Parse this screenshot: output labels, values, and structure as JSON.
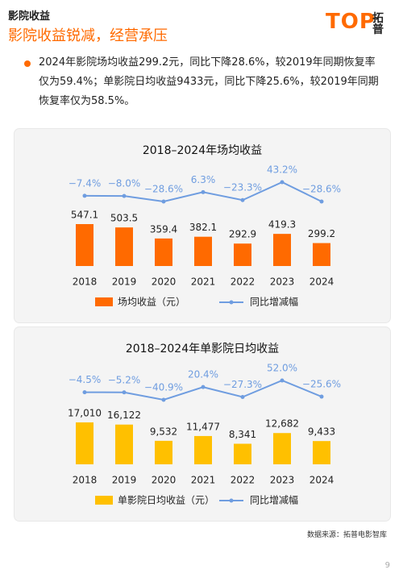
{
  "header": {
    "section": "影院收益",
    "title": "影院收益锐减，经营承压",
    "logo": {
      "mark": "TOP",
      "name": "拓普"
    }
  },
  "bullet": "2024年影院场均收益299.2元，同比下降28.6%，较2019年同期恢复率仅为59.4%；单影院日均收益9433元，同比下降25.6%，较2019年同期恢复率仅为58.5%。",
  "chart_data": [
    {
      "type": "bar",
      "title": "2018–2024年场均收益",
      "categories": [
        "2018",
        "2019",
        "2020",
        "2021",
        "2022",
        "2023",
        "2024"
      ],
      "series": [
        {
          "name": "场均收益（元）",
          "type": "bar",
          "color": "#ff6a00",
          "values": [
            547.1,
            503.5,
            359.4,
            382.1,
            292.9,
            419.3,
            299.2
          ]
        },
        {
          "name": "同比增减幅",
          "type": "line",
          "color": "#6f9de0",
          "values": [
            -7.4,
            -8.0,
            -28.6,
            6.3,
            -23.3,
            43.2,
            -28.6
          ],
          "value_labels": [
            "−7.4%",
            "−8.0%",
            "−28.6%",
            "6.3%",
            "−23.3%",
            "43.2%",
            "−28.6%"
          ]
        }
      ]
    },
    {
      "type": "bar",
      "title": "2018–2024年单影院日均收益",
      "categories": [
        "2018",
        "2019",
        "2020",
        "2021",
        "2022",
        "2023",
        "2024"
      ],
      "series": [
        {
          "name": "单影院日均收益（元）",
          "type": "bar",
          "color": "#ffc000",
          "values": [
            17010,
            16122,
            9532,
            11477,
            8341,
            12682,
            9433
          ],
          "value_labels": [
            "17,010",
            "16,122",
            "9,532",
            "11,477",
            "8,341",
            "12,682",
            "9,433"
          ]
        },
        {
          "name": "同比增减幅",
          "type": "line",
          "color": "#6f9de0",
          "values": [
            -4.5,
            -5.2,
            -40.9,
            20.4,
            -27.3,
            52.0,
            -25.6
          ],
          "value_labels": [
            "−4.5%",
            "−5.2%",
            "−40.9%",
            "20.4%",
            "−27.3%",
            "52.0%",
            "−25.6%"
          ]
        }
      ]
    }
  ],
  "source": "数据来源：拓普电影智库",
  "page_number": "9"
}
